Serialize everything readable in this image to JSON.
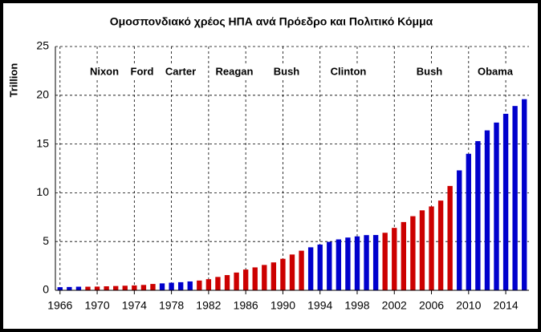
{
  "chart_data": {
    "type": "bar",
    "title": "Ομοσπονδιακό χρέος ΗΠΑ ανά Πρόεδρο και Πολιτικό Κόμμα",
    "y_label": "Trillion",
    "x": [
      1966,
      1967,
      1968,
      1969,
      1970,
      1971,
      1972,
      1973,
      1974,
      1975,
      1976,
      1977,
      1978,
      1979,
      1980,
      1981,
      1982,
      1983,
      1984,
      1985,
      1986,
      1987,
      1988,
      1989,
      1990,
      1991,
      1992,
      1993,
      1994,
      1995,
      1996,
      1997,
      1998,
      1999,
      2000,
      2001,
      2002,
      2003,
      2004,
      2005,
      2006,
      2007,
      2008,
      2009,
      2010,
      2011,
      2012,
      2013,
      2014,
      2015,
      2016
    ],
    "values": [
      0.32,
      0.34,
      0.37,
      0.37,
      0.38,
      0.41,
      0.44,
      0.47,
      0.5,
      0.55,
      0.65,
      0.71,
      0.78,
      0.83,
      0.91,
      1.0,
      1.14,
      1.37,
      1.56,
      1.82,
      2.13,
      2.35,
      2.6,
      2.86,
      3.23,
      3.67,
      4.06,
      4.41,
      4.69,
      4.97,
      5.22,
      5.41,
      5.53,
      5.66,
      5.67,
      5.9,
      6.4,
      7.0,
      7.6,
      8.2,
      8.6,
      9.2,
      10.7,
      12.3,
      14.0,
      15.3,
      16.4,
      17.2,
      18.1,
      18.9,
      19.6
    ],
    "colors": [
      "#0000cc",
      "#0000cc",
      "#0000cc",
      "#cc0000",
      "#cc0000",
      "#cc0000",
      "#cc0000",
      "#cc0000",
      "#cc0000",
      "#cc0000",
      "#cc0000",
      "#0000cc",
      "#0000cc",
      "#0000cc",
      "#0000cc",
      "#cc0000",
      "#cc0000",
      "#cc0000",
      "#cc0000",
      "#cc0000",
      "#cc0000",
      "#cc0000",
      "#cc0000",
      "#cc0000",
      "#cc0000",
      "#cc0000",
      "#cc0000",
      "#0000cc",
      "#0000cc",
      "#0000cc",
      "#0000cc",
      "#0000cc",
      "#0000cc",
      "#0000cc",
      "#0000cc",
      "#cc0000",
      "#cc0000",
      "#cc0000",
      "#cc0000",
      "#cc0000",
      "#cc0000",
      "#cc0000",
      "#cc0000",
      "#0000cc",
      "#0000cc",
      "#0000cc",
      "#0000cc",
      "#0000cc",
      "#0000cc",
      "#0000cc",
      "#0000cc"
    ],
    "annotations": [
      "Nixon",
      "Ford",
      "Carter",
      "Reagan",
      "Bush",
      "Clinton",
      "Bush",
      "Obama"
    ],
    "xlim": [
      1965.5,
      2016.5
    ],
    "xticks": [
      1966,
      1970,
      1974,
      1978,
      1982,
      1986,
      1990,
      1994,
      1998,
      2002,
      2006,
      2010,
      2014
    ],
    "ylim": [
      0,
      25
    ],
    "yticks": [
      0,
      5,
      10,
      15,
      20,
      25
    ],
    "grid": true
  }
}
